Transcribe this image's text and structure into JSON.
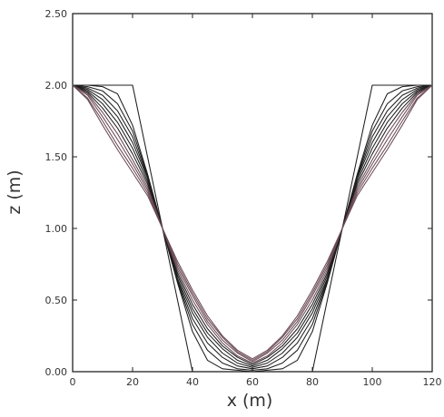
{
  "chart_data": {
    "type": "line",
    "title": "",
    "xlabel": "x (m)",
    "ylabel": "z (m)",
    "xlim": [
      0,
      120
    ],
    "ylim": [
      0,
      2.5
    ],
    "grid": false,
    "legend": "none",
    "x_ticks": [
      {
        "value": 0,
        "label": "0"
      },
      {
        "value": 20,
        "label": "20"
      },
      {
        "value": 40,
        "label": "40"
      },
      {
        "value": 60,
        "label": "60"
      },
      {
        "value": 80,
        "label": "80"
      },
      {
        "value": 100,
        "label": "100"
      },
      {
        "value": 120,
        "label": "120"
      }
    ],
    "y_ticks": [
      {
        "value": 0,
        "label": "0.00"
      },
      {
        "value": 0.5,
        "label": "0.50"
      },
      {
        "value": 1.0,
        "label": "1.00"
      },
      {
        "value": 1.5,
        "label": "1.50"
      },
      {
        "value": 2.0,
        "label": "2.00"
      },
      {
        "value": 2.5,
        "label": "2.50"
      }
    ],
    "series": [
      {
        "x": [
          0,
          20,
          40,
          80,
          100,
          120
        ],
        "y": [
          2.0,
          2.0,
          0.0,
          0.0,
          2.0,
          2.0
        ]
      },
      {
        "x": [
          0,
          5,
          10,
          15,
          20,
          25,
          30,
          35,
          40,
          45,
          50,
          55,
          60,
          65,
          70,
          75,
          80,
          85,
          90,
          95,
          100,
          105,
          110,
          115,
          120
        ],
        "y": [
          2.0,
          2.0,
          1.99,
          1.94,
          1.72,
          1.38,
          1.0,
          0.62,
          0.28,
          0.08,
          0.02,
          0.01,
          0.0,
          0.01,
          0.02,
          0.08,
          0.28,
          0.62,
          1.0,
          1.38,
          1.72,
          1.94,
          1.99,
          2.0,
          2.0
        ]
      },
      {
        "x": [
          0,
          5,
          10,
          15,
          20,
          25,
          30,
          35,
          40,
          45,
          50,
          55,
          60,
          65,
          70,
          75,
          80,
          85,
          90,
          95,
          100,
          105,
          110,
          115,
          120
        ],
        "y": [
          2.0,
          1.99,
          1.96,
          1.87,
          1.68,
          1.37,
          1.0,
          0.63,
          0.33,
          0.15,
          0.06,
          0.02,
          0.01,
          0.02,
          0.06,
          0.15,
          0.33,
          0.63,
          1.0,
          1.37,
          1.68,
          1.87,
          1.96,
          1.99,
          2.0
        ]
      },
      {
        "x": [
          0,
          5,
          10,
          15,
          20,
          25,
          30,
          35,
          40,
          45,
          50,
          55,
          60,
          65,
          70,
          75,
          80,
          85,
          90,
          95,
          100,
          105,
          110,
          115,
          120
        ],
        "y": [
          2.0,
          1.98,
          1.93,
          1.82,
          1.64,
          1.36,
          1.0,
          0.64,
          0.37,
          0.2,
          0.1,
          0.04,
          0.02,
          0.04,
          0.1,
          0.2,
          0.37,
          0.64,
          1.0,
          1.36,
          1.64,
          1.82,
          1.93,
          1.98,
          2.0
        ]
      },
      {
        "x": [
          0,
          5,
          10,
          15,
          20,
          25,
          30,
          35,
          40,
          45,
          50,
          55,
          60,
          65,
          70,
          75,
          80,
          85,
          90,
          95,
          100,
          105,
          110,
          115,
          120
        ],
        "y": [
          2.0,
          1.97,
          1.9,
          1.78,
          1.6,
          1.35,
          1.0,
          0.65,
          0.41,
          0.24,
          0.13,
          0.06,
          0.03,
          0.06,
          0.13,
          0.24,
          0.41,
          0.65,
          1.0,
          1.35,
          1.6,
          1.78,
          1.9,
          1.97,
          2.0
        ]
      },
      {
        "x": [
          0,
          5,
          10,
          15,
          20,
          25,
          30,
          35,
          40,
          45,
          50,
          55,
          60,
          65,
          70,
          75,
          80,
          85,
          90,
          95,
          100,
          105,
          110,
          115,
          120
        ],
        "y": [
          2.0,
          1.96,
          1.87,
          1.74,
          1.56,
          1.33,
          1.0,
          0.67,
          0.44,
          0.27,
          0.16,
          0.08,
          0.04,
          0.08,
          0.16,
          0.27,
          0.44,
          0.67,
          1.0,
          1.33,
          1.56,
          1.74,
          1.87,
          1.96,
          2.0
        ]
      },
      {
        "x": [
          0,
          5,
          10,
          15,
          20,
          25,
          30,
          35,
          40,
          45,
          50,
          55,
          60,
          65,
          70,
          75,
          80,
          85,
          90,
          95,
          100,
          105,
          110,
          115,
          120
        ],
        "y": [
          2.0,
          1.95,
          1.84,
          1.7,
          1.52,
          1.31,
          1.0,
          0.69,
          0.47,
          0.3,
          0.18,
          0.1,
          0.05,
          0.1,
          0.18,
          0.3,
          0.47,
          0.69,
          1.0,
          1.31,
          1.52,
          1.7,
          1.84,
          1.95,
          2.0
        ]
      },
      {
        "x": [
          0,
          5,
          10,
          15,
          20,
          25,
          30,
          35,
          40,
          45,
          50,
          55,
          60,
          65,
          70,
          75,
          80,
          85,
          90,
          95,
          100,
          105,
          110,
          115,
          120
        ],
        "y": [
          2.0,
          1.94,
          1.81,
          1.66,
          1.48,
          1.29,
          1.0,
          0.71,
          0.5,
          0.33,
          0.2,
          0.11,
          0.06,
          0.11,
          0.2,
          0.33,
          0.5,
          0.71,
          1.0,
          1.29,
          1.48,
          1.66,
          1.81,
          1.94,
          2.0
        ]
      },
      {
        "x": [
          0,
          5,
          10,
          15,
          20,
          25,
          30,
          35,
          40,
          45,
          50,
          55,
          60,
          65,
          70,
          75,
          80,
          85,
          90,
          95,
          100,
          105,
          110,
          115,
          120
        ],
        "y": [
          2.0,
          1.93,
          1.78,
          1.62,
          1.45,
          1.27,
          1.0,
          0.73,
          0.53,
          0.35,
          0.22,
          0.13,
          0.07,
          0.13,
          0.22,
          0.35,
          0.53,
          0.73,
          1.0,
          1.27,
          1.45,
          1.62,
          1.78,
          1.93,
          2.0
        ]
      },
      {
        "x": [
          0,
          5,
          10,
          15,
          20,
          25,
          30,
          35,
          40,
          45,
          50,
          55,
          60,
          65,
          70,
          75,
          80,
          85,
          90,
          95,
          100,
          105,
          110,
          115,
          120
        ],
        "y": [
          2.0,
          1.91,
          1.75,
          1.58,
          1.42,
          1.25,
          1.0,
          0.75,
          0.55,
          0.37,
          0.24,
          0.14,
          0.08,
          0.14,
          0.24,
          0.37,
          0.55,
          0.75,
          1.0,
          1.25,
          1.42,
          1.58,
          1.75,
          1.91,
          2.0
        ]
      },
      {
        "x": [
          0,
          5,
          10,
          15,
          20,
          25,
          30,
          35,
          40,
          45,
          50,
          55,
          60,
          65,
          70,
          75,
          80,
          85,
          90,
          95,
          100,
          105,
          110,
          115,
          120
        ],
        "y": [
          2.0,
          1.9,
          1.72,
          1.55,
          1.39,
          1.23,
          1.0,
          0.77,
          0.57,
          0.39,
          0.25,
          0.15,
          0.09,
          0.15,
          0.25,
          0.39,
          0.57,
          0.77,
          1.0,
          1.23,
          1.39,
          1.55,
          1.72,
          1.9,
          2.0
        ]
      }
    ]
  }
}
